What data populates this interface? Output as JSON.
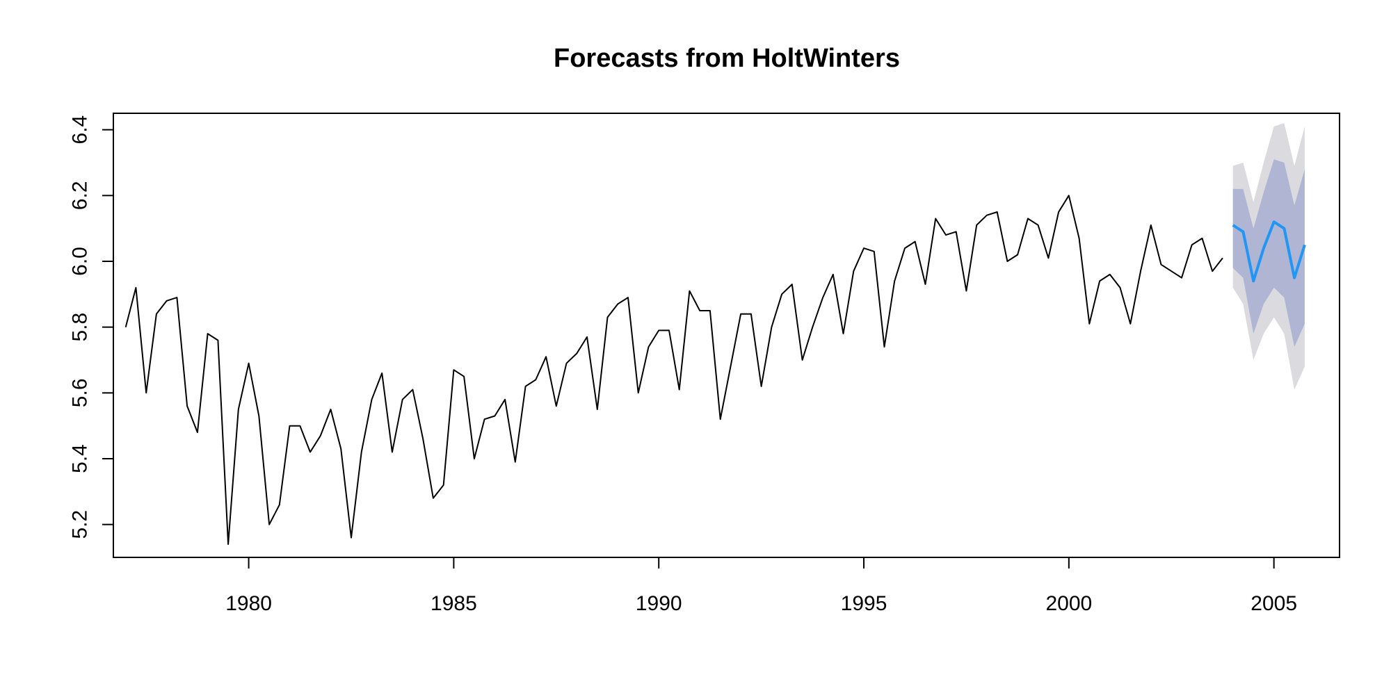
{
  "chart_data": {
    "type": "line",
    "title": "Forecasts from HoltWinters",
    "xlabel": "",
    "ylabel": "",
    "xlim": [
      1976.7,
      2006.6
    ],
    "ylim": [
      5.1,
      6.45
    ],
    "x_ticks": [
      {
        "value": 1980,
        "label": "1980"
      },
      {
        "value": 1985,
        "label": "1985"
      },
      {
        "value": 1990,
        "label": "1990"
      },
      {
        "value": 1995,
        "label": "1995"
      },
      {
        "value": 2000,
        "label": "2000"
      },
      {
        "value": 2005,
        "label": "2005"
      }
    ],
    "y_ticks": [
      {
        "value": 5.2,
        "label": "5.2"
      },
      {
        "value": 5.4,
        "label": "5.4"
      },
      {
        "value": 5.6,
        "label": "5.6"
      },
      {
        "value": 5.8,
        "label": "5.8"
      },
      {
        "value": 6.0,
        "label": "6.0"
      },
      {
        "value": 6.2,
        "label": "6.2"
      },
      {
        "value": 6.4,
        "label": "6.4"
      }
    ],
    "grid": false,
    "legend": "none",
    "observed": {
      "start": 1977.0,
      "frequency": 4,
      "color": "#000000",
      "values": [
        5.8,
        5.92,
        5.6,
        5.84,
        5.88,
        5.89,
        5.56,
        5.48,
        5.78,
        5.76,
        5.14,
        5.55,
        5.69,
        5.53,
        5.2,
        5.26,
        5.5,
        5.5,
        5.42,
        5.47,
        5.55,
        5.43,
        5.16,
        5.42,
        5.58,
        5.66,
        5.42,
        5.58,
        5.61,
        5.46,
        5.28,
        5.32,
        5.67,
        5.65,
        5.4,
        5.52,
        5.53,
        5.58,
        5.39,
        5.62,
        5.64,
        5.71,
        5.56,
        5.69,
        5.72,
        5.77,
        5.55,
        5.83,
        5.87,
        5.89,
        5.6,
        5.74,
        5.79,
        5.79,
        5.61,
        5.91,
        5.85,
        5.85,
        5.52,
        5.68,
        5.84,
        5.84,
        5.62,
        5.8,
        5.9,
        5.93,
        5.7,
        5.8,
        5.89,
        5.96,
        5.78,
        5.97,
        6.04,
        6.03,
        5.74,
        5.94,
        6.04,
        6.06,
        5.93,
        6.13,
        6.08,
        6.09,
        5.91,
        6.11,
        6.14,
        6.15,
        6.0,
        6.02,
        6.13,
        6.11,
        6.01,
        6.15,
        6.2,
        6.07,
        5.81,
        5.94,
        5.96,
        5.92,
        5.81,
        5.97,
        6.11,
        5.99,
        5.97,
        5.95,
        6.05,
        6.07,
        5.97,
        6.01
      ]
    },
    "forecast": {
      "start": 2004.0,
      "frequency": 4,
      "color": "#2196f3",
      "mean": [
        6.11,
        6.09,
        5.94,
        6.04,
        6.12,
        6.1,
        5.95,
        6.05
      ],
      "lower80": [
        5.98,
        5.95,
        5.78,
        5.87,
        5.92,
        5.89,
        5.74,
        5.81
      ],
      "upper80": [
        6.22,
        6.22,
        6.1,
        6.21,
        6.31,
        6.3,
        6.17,
        6.28
      ],
      "lower95": [
        5.92,
        5.87,
        5.7,
        5.78,
        5.83,
        5.78,
        5.61,
        5.68
      ],
      "upper95": [
        6.29,
        6.3,
        6.18,
        6.3,
        6.41,
        6.42,
        6.29,
        6.41
      ],
      "band80_color": "#b1b5d4",
      "band95_color": "#dbdbdf"
    }
  }
}
